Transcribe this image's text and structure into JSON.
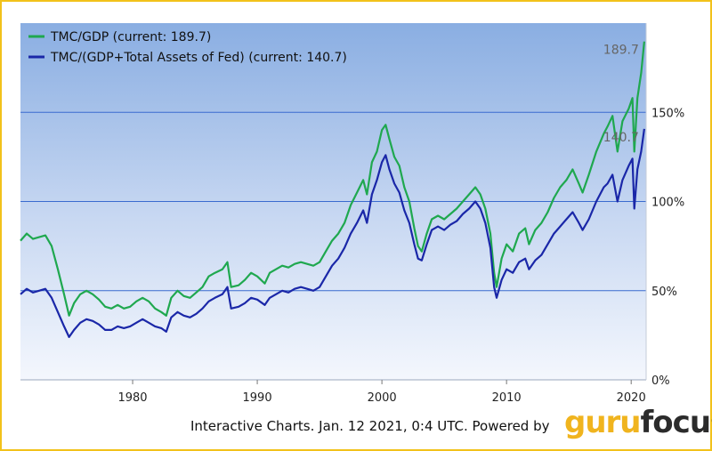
{
  "chart_data": {
    "type": "line",
    "x_ticks": [
      1980,
      1990,
      2000,
      2010,
      2020
    ],
    "y_ticks": [
      0,
      50,
      100,
      150
    ],
    "y_tick_labels": [
      "0%",
      "50%",
      "100%",
      "150%"
    ],
    "xlim": [
      1971,
      2021.2
    ],
    "ylim": [
      0,
      200
    ],
    "grid": "horizontal",
    "legend_position": "top-left",
    "series": [
      {
        "name": "TMC/GDP (current: 189.7)",
        "color": "#1fa84f",
        "end_label": "189.7",
        "points": [
          [
            1971,
            78
          ],
          [
            1971.5,
            82
          ],
          [
            1972,
            79
          ],
          [
            1972.5,
            80
          ],
          [
            1973,
            81
          ],
          [
            1973.5,
            75
          ],
          [
            1974,
            62
          ],
          [
            1974.5,
            48
          ],
          [
            1974.9,
            36
          ],
          [
            1975.3,
            43
          ],
          [
            1975.8,
            48
          ],
          [
            1976.3,
            50
          ],
          [
            1976.8,
            48
          ],
          [
            1977.3,
            45
          ],
          [
            1977.8,
            41
          ],
          [
            1978.3,
            40
          ],
          [
            1978.8,
            42
          ],
          [
            1979.3,
            40
          ],
          [
            1979.8,
            41
          ],
          [
            1980.3,
            44
          ],
          [
            1980.8,
            46
          ],
          [
            1981.3,
            44
          ],
          [
            1981.8,
            40
          ],
          [
            1982.3,
            38
          ],
          [
            1982.7,
            36
          ],
          [
            1983.1,
            46
          ],
          [
            1983.6,
            50
          ],
          [
            1984.1,
            47
          ],
          [
            1984.6,
            46
          ],
          [
            1985.1,
            49
          ],
          [
            1985.6,
            52
          ],
          [
            1986.1,
            58
          ],
          [
            1986.6,
            60
          ],
          [
            1987.2,
            62
          ],
          [
            1987.6,
            66
          ],
          [
            1987.9,
            52
          ],
          [
            1988.5,
            53
          ],
          [
            1989,
            56
          ],
          [
            1989.5,
            60
          ],
          [
            1990,
            58
          ],
          [
            1990.6,
            54
          ],
          [
            1991,
            60
          ],
          [
            1991.5,
            62
          ],
          [
            1992,
            64
          ],
          [
            1992.5,
            63
          ],
          [
            1993,
            65
          ],
          [
            1993.5,
            66
          ],
          [
            1994,
            65
          ],
          [
            1994.5,
            64
          ],
          [
            1995,
            66
          ],
          [
            1995.5,
            72
          ],
          [
            1996,
            78
          ],
          [
            1996.5,
            82
          ],
          [
            1997,
            88
          ],
          [
            1997.5,
            98
          ],
          [
            1998,
            105
          ],
          [
            1998.5,
            112
          ],
          [
            1998.8,
            104
          ],
          [
            1999.2,
            122
          ],
          [
            1999.6,
            128
          ],
          [
            2000,
            140
          ],
          [
            2000.3,
            143
          ],
          [
            2000.6,
            135
          ],
          [
            2001,
            125
          ],
          [
            2001.4,
            120
          ],
          [
            2001.8,
            108
          ],
          [
            2002.2,
            100
          ],
          [
            2002.6,
            85
          ],
          [
            2002.9,
            75
          ],
          [
            2003.2,
            72
          ],
          [
            2003.6,
            82
          ],
          [
            2004,
            90
          ],
          [
            2004.5,
            92
          ],
          [
            2005,
            90
          ],
          [
            2005.5,
            93
          ],
          [
            2006,
            96
          ],
          [
            2006.5,
            100
          ],
          [
            2007,
            104
          ],
          [
            2007.5,
            108
          ],
          [
            2007.9,
            104
          ],
          [
            2008.3,
            96
          ],
          [
            2008.7,
            82
          ],
          [
            2009,
            60
          ],
          [
            2009.2,
            52
          ],
          [
            2009.6,
            68
          ],
          [
            2010,
            76
          ],
          [
            2010.5,
            72
          ],
          [
            2011,
            82
          ],
          [
            2011.5,
            85
          ],
          [
            2011.8,
            76
          ],
          [
            2012.3,
            84
          ],
          [
            2012.8,
            88
          ],
          [
            2013.3,
            94
          ],
          [
            2013.8,
            102
          ],
          [
            2014.3,
            108
          ],
          [
            2014.8,
            112
          ],
          [
            2015.3,
            118
          ],
          [
            2015.8,
            110
          ],
          [
            2016.1,
            105
          ],
          [
            2016.6,
            115
          ],
          [
            2017.2,
            128
          ],
          [
            2017.8,
            138
          ],
          [
            2018.1,
            142
          ],
          [
            2018.5,
            148
          ],
          [
            2018.9,
            128
          ],
          [
            2019.3,
            145
          ],
          [
            2019.8,
            152
          ],
          [
            2020.1,
            158
          ],
          [
            2020.25,
            128
          ],
          [
            2020.5,
            158
          ],
          [
            2020.8,
            172
          ],
          [
            2021.05,
            189.7
          ]
        ]
      },
      {
        "name": "TMC/(GDP+Total Assets of Fed) (current: 140.7)",
        "color": "#1a27a8",
        "end_label": "140.7",
        "points": [
          [
            1971,
            48
          ],
          [
            1971.5,
            51
          ],
          [
            1972,
            49
          ],
          [
            1972.5,
            50
          ],
          [
            1973,
            51
          ],
          [
            1973.5,
            46
          ],
          [
            1974,
            38
          ],
          [
            1974.5,
            30
          ],
          [
            1974.9,
            24
          ],
          [
            1975.3,
            28
          ],
          [
            1975.8,
            32
          ],
          [
            1976.3,
            34
          ],
          [
            1976.8,
            33
          ],
          [
            1977.3,
            31
          ],
          [
            1977.8,
            28
          ],
          [
            1978.3,
            28
          ],
          [
            1978.8,
            30
          ],
          [
            1979.3,
            29
          ],
          [
            1979.8,
            30
          ],
          [
            1980.3,
            32
          ],
          [
            1980.8,
            34
          ],
          [
            1981.3,
            32
          ],
          [
            1981.8,
            30
          ],
          [
            1982.3,
            29
          ],
          [
            1982.7,
            27
          ],
          [
            1983.1,
            35
          ],
          [
            1983.6,
            38
          ],
          [
            1984.1,
            36
          ],
          [
            1984.6,
            35
          ],
          [
            1985.1,
            37
          ],
          [
            1985.6,
            40
          ],
          [
            1986.1,
            44
          ],
          [
            1986.6,
            46
          ],
          [
            1987.2,
            48
          ],
          [
            1987.6,
            52
          ],
          [
            1987.9,
            40
          ],
          [
            1988.5,
            41
          ],
          [
            1989,
            43
          ],
          [
            1989.5,
            46
          ],
          [
            1990,
            45
          ],
          [
            1990.6,
            42
          ],
          [
            1991,
            46
          ],
          [
            1991.5,
            48
          ],
          [
            1992,
            50
          ],
          [
            1992.5,
            49
          ],
          [
            1993,
            51
          ],
          [
            1993.5,
            52
          ],
          [
            1994,
            51
          ],
          [
            1994.5,
            50
          ],
          [
            1995,
            52
          ],
          [
            1995.5,
            58
          ],
          [
            1996,
            64
          ],
          [
            1996.5,
            68
          ],
          [
            1997,
            74
          ],
          [
            1997.5,
            82
          ],
          [
            1998,
            88
          ],
          [
            1998.5,
            95
          ],
          [
            1998.8,
            88
          ],
          [
            1999.2,
            104
          ],
          [
            1999.6,
            112
          ],
          [
            2000,
            122
          ],
          [
            2000.3,
            126
          ],
          [
            2000.6,
            118
          ],
          [
            2001,
            110
          ],
          [
            2001.4,
            105
          ],
          [
            2001.8,
            95
          ],
          [
            2002.2,
            88
          ],
          [
            2002.6,
            76
          ],
          [
            2002.9,
            68
          ],
          [
            2003.2,
            67
          ],
          [
            2003.6,
            76
          ],
          [
            2004,
            84
          ],
          [
            2004.5,
            86
          ],
          [
            2005,
            84
          ],
          [
            2005.5,
            87
          ],
          [
            2006,
            89
          ],
          [
            2006.5,
            93
          ],
          [
            2007,
            96
          ],
          [
            2007.5,
            100
          ],
          [
            2007.9,
            96
          ],
          [
            2008.3,
            88
          ],
          [
            2008.7,
            74
          ],
          [
            2009,
            52
          ],
          [
            2009.2,
            46
          ],
          [
            2009.6,
            56
          ],
          [
            2010,
            62
          ],
          [
            2010.5,
            60
          ],
          [
            2011,
            66
          ],
          [
            2011.5,
            68
          ],
          [
            2011.8,
            62
          ],
          [
            2012.3,
            67
          ],
          [
            2012.8,
            70
          ],
          [
            2013.3,
            76
          ],
          [
            2013.8,
            82
          ],
          [
            2014.3,
            86
          ],
          [
            2014.8,
            90
          ],
          [
            2015.3,
            94
          ],
          [
            2015.8,
            88
          ],
          [
            2016.1,
            84
          ],
          [
            2016.6,
            90
          ],
          [
            2017.2,
            100
          ],
          [
            2017.8,
            108
          ],
          [
            2018.1,
            110
          ],
          [
            2018.5,
            115
          ],
          [
            2018.9,
            100
          ],
          [
            2019.3,
            112
          ],
          [
            2019.8,
            120
          ],
          [
            2020.1,
            124
          ],
          [
            2020.25,
            96
          ],
          [
            2020.5,
            118
          ],
          [
            2020.8,
            128
          ],
          [
            2021.05,
            140.7
          ]
        ]
      }
    ]
  },
  "footer": {
    "text": "Interactive Charts. Jan. 12 2021, 0:4 UTC. Powered by",
    "brand_part1": "guru",
    "brand_part2": "focus"
  }
}
